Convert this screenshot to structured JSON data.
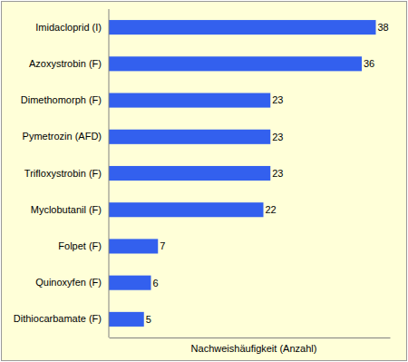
{
  "chart_data": {
    "type": "bar",
    "orientation": "horizontal",
    "categories": [
      "Imidacloprid (I)",
      "Azoxystrobin (F)",
      "Dimethomorph (F)",
      "Pymetrozin (AFD)",
      "Trifloxystrobin (F)",
      "Myclobutanil (F)",
      "Folpet (F)",
      "Quinoxyfen (F)",
      "Dithiocarbamate (F)"
    ],
    "values": [
      38,
      36,
      23,
      23,
      23,
      22,
      7,
      6,
      5
    ],
    "color": "#3360ee",
    "xlabel": "Nachweishäufigkeit (Anzahl)",
    "xlim": [
      0,
      40
    ],
    "data_labels": true,
    "tick_labels": "y",
    "grid": false
  }
}
